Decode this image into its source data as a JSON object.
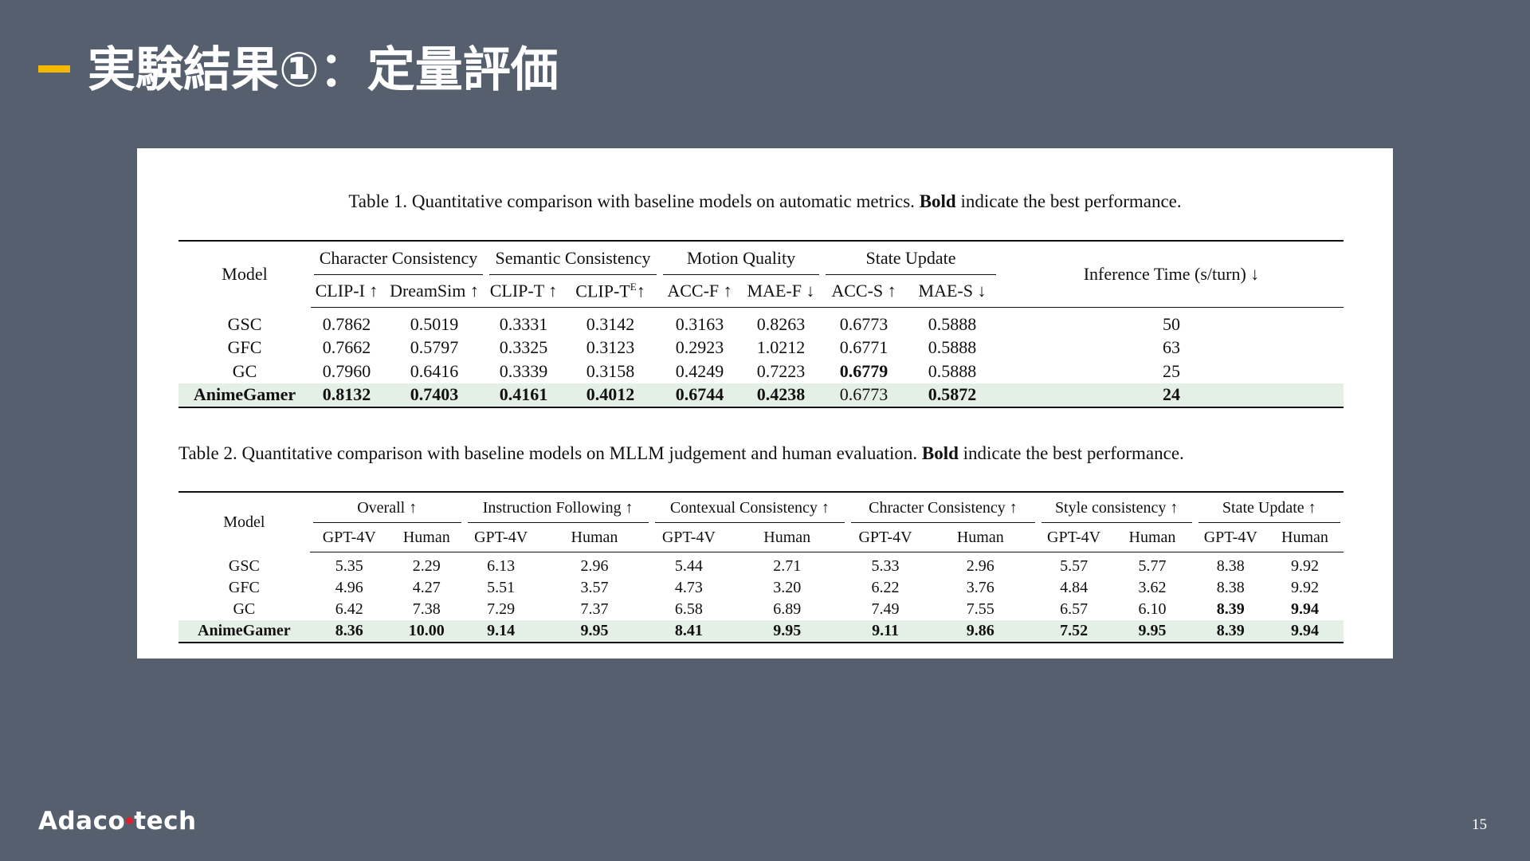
{
  "slide": {
    "title": "実験結果①：定量評価",
    "page_number": "15",
    "logo": {
      "prefix": "Adac",
      "ring": "o",
      "suffix": "tech"
    },
    "accent_color": "#f5b700",
    "background_color": "#555f6e"
  },
  "table1": {
    "caption_pre": "Table 1. Quantitative comparison with baseline models on automatic metrics. ",
    "caption_bold": "Bold",
    "caption_post": " indicate the best performance.",
    "model_header": "Model",
    "groups": [
      "Character Consistency",
      "Semantic Consistency",
      "Motion Quality",
      "State Update"
    ],
    "inference_header": "Inference Time (s/turn) ↓",
    "metrics": [
      "CLIP-I ↑",
      "DreamSim ↑",
      "CLIP-T ↑",
      "CLIP-T",
      "E",
      "↑",
      "ACC-F ↑",
      "MAE-F ↓",
      "ACC-S ↑",
      "MAE-S ↓"
    ],
    "rows": [
      {
        "model": "GSC",
        "values": [
          "0.7862",
          "0.5019",
          "0.3331",
          "0.3142",
          "0.3163",
          "0.8263",
          "0.6773",
          "0.5888",
          "50"
        ]
      },
      {
        "model": "GFC",
        "values": [
          "0.7662",
          "0.5797",
          "0.3325",
          "0.3123",
          "0.2923",
          "1.0212",
          "0.6771",
          "0.5888",
          "63"
        ]
      },
      {
        "model": "GC",
        "values": [
          "0.7960",
          "0.6416",
          "0.3339",
          "0.3158",
          "0.4249",
          "0.7223",
          "0.6779",
          "0.5888",
          "25"
        ]
      },
      {
        "model": "AnimeGamer",
        "values": [
          "0.8132",
          "0.7403",
          "0.4161",
          "0.4012",
          "0.6744",
          "0.4238",
          "0.6773",
          "0.5872",
          "24"
        ]
      }
    ]
  },
  "table2": {
    "caption_pre": "Table 2. Quantitative comparison with baseline models on MLLM judgement and human evaluation. ",
    "caption_bold": "Bold",
    "caption_post": " indicate the best performance.",
    "model_header": "Model",
    "groups": [
      "Overall ↑",
      "Instruction Following ↑",
      "Contexual Consistency ↑",
      "Chracter Consistency ↑",
      "Style consistency ↑",
      "State Update ↑"
    ],
    "sub_a": "GPT-4V",
    "sub_b": "Human",
    "rows": [
      {
        "model": "GSC",
        "values": [
          "5.35",
          "2.29",
          "6.13",
          "2.96",
          "5.44",
          "2.71",
          "5.33",
          "2.96",
          "5.57",
          "5.77",
          "8.38",
          "9.92"
        ]
      },
      {
        "model": "GFC",
        "values": [
          "4.96",
          "4.27",
          "5.51",
          "3.57",
          "4.73",
          "3.20",
          "6.22",
          "3.76",
          "4.84",
          "3.62",
          "8.38",
          "9.92"
        ]
      },
      {
        "model": "GC",
        "values": [
          "6.42",
          "7.38",
          "7.29",
          "7.37",
          "6.58",
          "6.89",
          "7.49",
          "7.55",
          "6.57",
          "6.10",
          "8.39",
          "9.94"
        ]
      },
      {
        "model": "AnimeGamer",
        "values": [
          "8.36",
          "10.00",
          "9.14",
          "9.95",
          "8.41",
          "9.95",
          "9.11",
          "9.86",
          "7.52",
          "9.95",
          "8.39",
          "9.94"
        ]
      }
    ]
  }
}
